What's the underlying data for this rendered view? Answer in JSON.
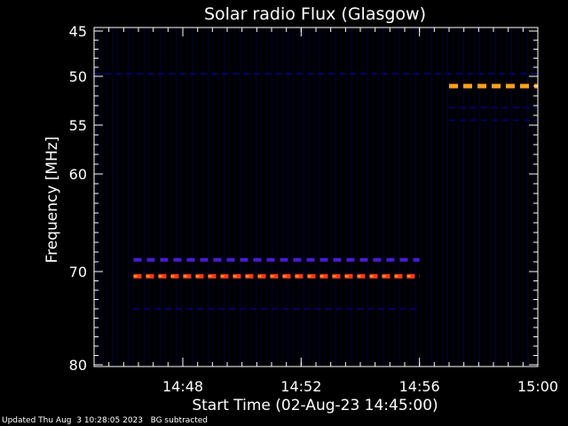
{
  "chart_data": {
    "type": "heatmap",
    "title": "Solar radio Flux (Glasgow)",
    "xlabel": "Start Time (02-Aug-23 14:45:00)",
    "ylabel": "Frequency [MHz]",
    "xlim": [
      "14:45:00",
      "15:00:00"
    ],
    "ylim": [
      45,
      80
    ],
    "y_scale": "log-like",
    "x_ticks": [
      "14:48",
      "14:52",
      "14:56",
      "15:00"
    ],
    "y_ticks": [
      45,
      50,
      55,
      60,
      70,
      80
    ],
    "grid": false,
    "colors": {
      "background": "#000000",
      "frame": "#ffffff",
      "low": "#000064",
      "mid": "#4a1ad8",
      "high": "#ff3a1a",
      "peak": "#ffa020"
    },
    "bands": [
      {
        "freq_mhz": 49.7,
        "start": "14:45:00",
        "end": "15:00:00",
        "intensity": "low"
      },
      {
        "freq_mhz": 51.0,
        "start": "14:57:00",
        "end": "15:00:00",
        "intensity": "peak"
      },
      {
        "freq_mhz": 53.2,
        "start": "14:57:00",
        "end": "15:00:00",
        "intensity": "low"
      },
      {
        "freq_mhz": 54.5,
        "start": "14:57:00",
        "end": "15:00:00",
        "intensity": "low"
      },
      {
        "freq_mhz": 68.8,
        "start": "14:46:20",
        "end": "14:56:00",
        "intensity": "mid"
      },
      {
        "freq_mhz": 70.5,
        "start": "14:46:20",
        "end": "14:56:00",
        "intensity": "high"
      },
      {
        "freq_mhz": 74.0,
        "start": "14:46:20",
        "end": "14:56:00",
        "intensity": "low"
      }
    ]
  },
  "footer": {
    "updated": "Updated Thu Aug  3 10:28:05 2023   BG subtracted"
  }
}
